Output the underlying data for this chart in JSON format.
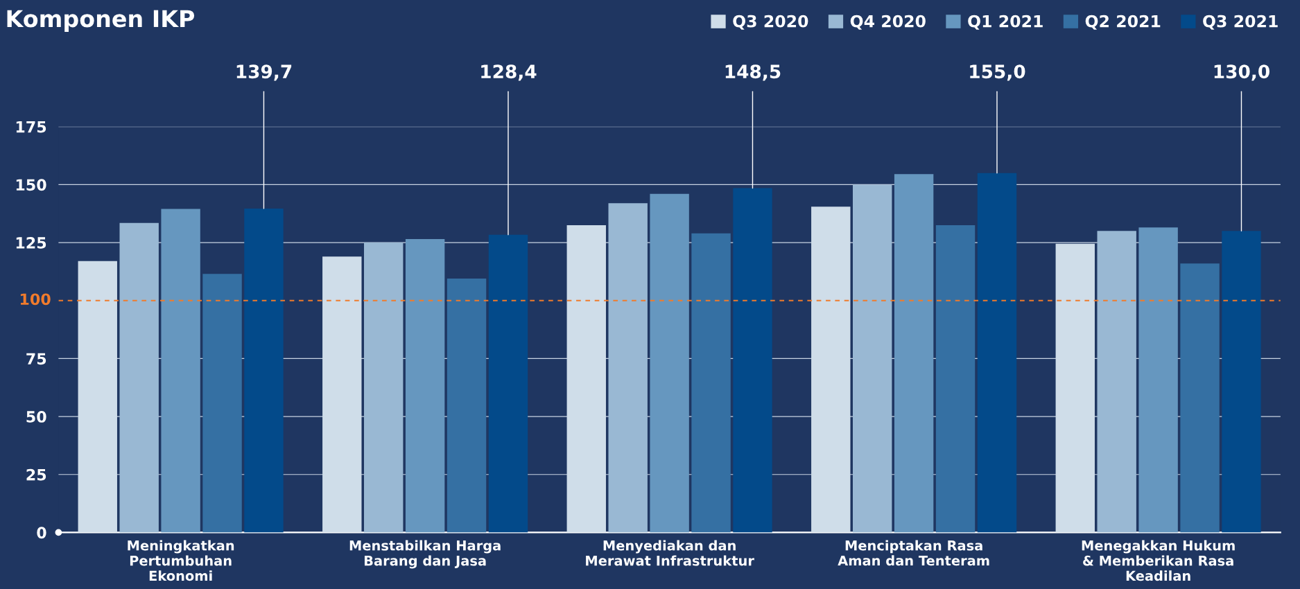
{
  "chart_data": {
    "type": "bar",
    "title": "Komponen IKP",
    "categories": [
      "Meningkatkan\nPertumbuhan\nEkonomi",
      "Menstabilkan Harga\nBarang dan Jasa",
      "Menyediakan dan\nMerawat Infrastruktur",
      "Menciptakan Rasa\nAman dan Tenteram",
      "Menegakkan Hukum\n& Memberikan Rasa\nKeadilan"
    ],
    "series": [
      {
        "name": "Q3 2020",
        "color": "#cfdde9",
        "values": [
          117,
          119,
          132.5,
          140.5,
          124.5
        ]
      },
      {
        "name": "Q4 2020",
        "color": "#99b8d3",
        "values": [
          133.5,
          125,
          142,
          150,
          130
        ]
      },
      {
        "name": "Q1 2021",
        "color": "#6697bf",
        "values": [
          139.5,
          126.5,
          146,
          154.5,
          131.5
        ]
      },
      {
        "name": "Q2 2021",
        "color": "#3570a3",
        "values": [
          111.5,
          109.5,
          129,
          132.5,
          116
        ]
      },
      {
        "name": "Q3 2021",
        "color": "#034a8a",
        "values": [
          139.7,
          128.4,
          148.5,
          155.0,
          130.0
        ],
        "value_labels": [
          "139,7",
          "128,4",
          "148,5",
          "155,0",
          "130,0"
        ]
      }
    ],
    "ylim": [
      0,
      175
    ],
    "yticks": [
      0,
      25,
      50,
      75,
      125,
      150,
      175
    ],
    "ref_lines": [
      {
        "axis": "y",
        "value": 100,
        "label": "100",
        "color": "#f07b2c",
        "line_style": "dashed"
      }
    ],
    "grid": "y",
    "legend": "top right"
  }
}
